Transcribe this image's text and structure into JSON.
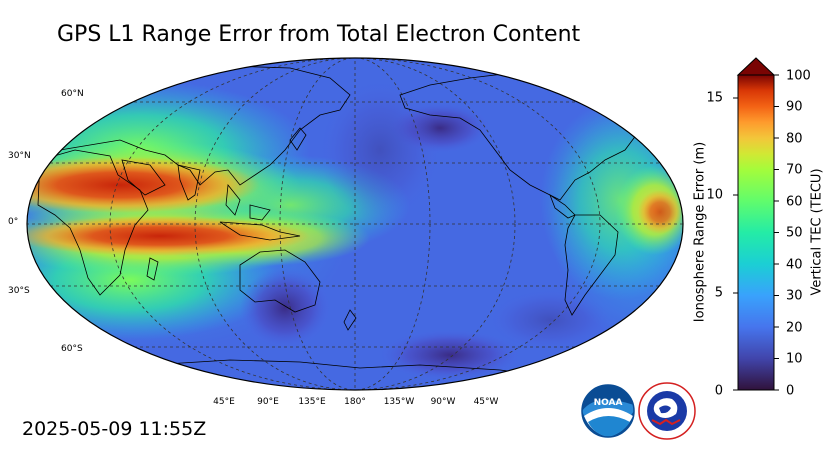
{
  "title": "GPS L1 Range Error from Total Electron Content",
  "timestamp": "2025-05-09 11:55Z",
  "map": {
    "projection": "Robinson",
    "central_longitude": 180,
    "lat_labels": [
      "60°N",
      "30°N",
      "0°",
      "30°S",
      "60°S"
    ],
    "lon_labels": [
      "45°E",
      "90°E",
      "135°E",
      "180°",
      "135°W",
      "90°W",
      "45°W"
    ]
  },
  "colorbar": {
    "left_label": "Ionosphere Range Error (m)",
    "right_label": "Vertical TEC (TECU)",
    "left_ticks": [
      "0",
      "5",
      "10",
      "15"
    ],
    "right_ticks": [
      "0",
      "10",
      "20",
      "30",
      "40",
      "50",
      "60",
      "70",
      "80",
      "90",
      "100"
    ],
    "range_tecu": [
      0,
      100
    ],
    "range_m": [
      0,
      16.2
    ],
    "extend": "max",
    "colormap": "turbo"
  },
  "logos": [
    {
      "icon": "noaa-logo",
      "text": "NOAA"
    },
    {
      "icon": "nws-logo",
      "text": "NATIONAL WEATHER SERVICE"
    }
  ],
  "colors": {
    "land_outline": "#000000",
    "grid": "#333333",
    "background": "#ffffff"
  }
}
